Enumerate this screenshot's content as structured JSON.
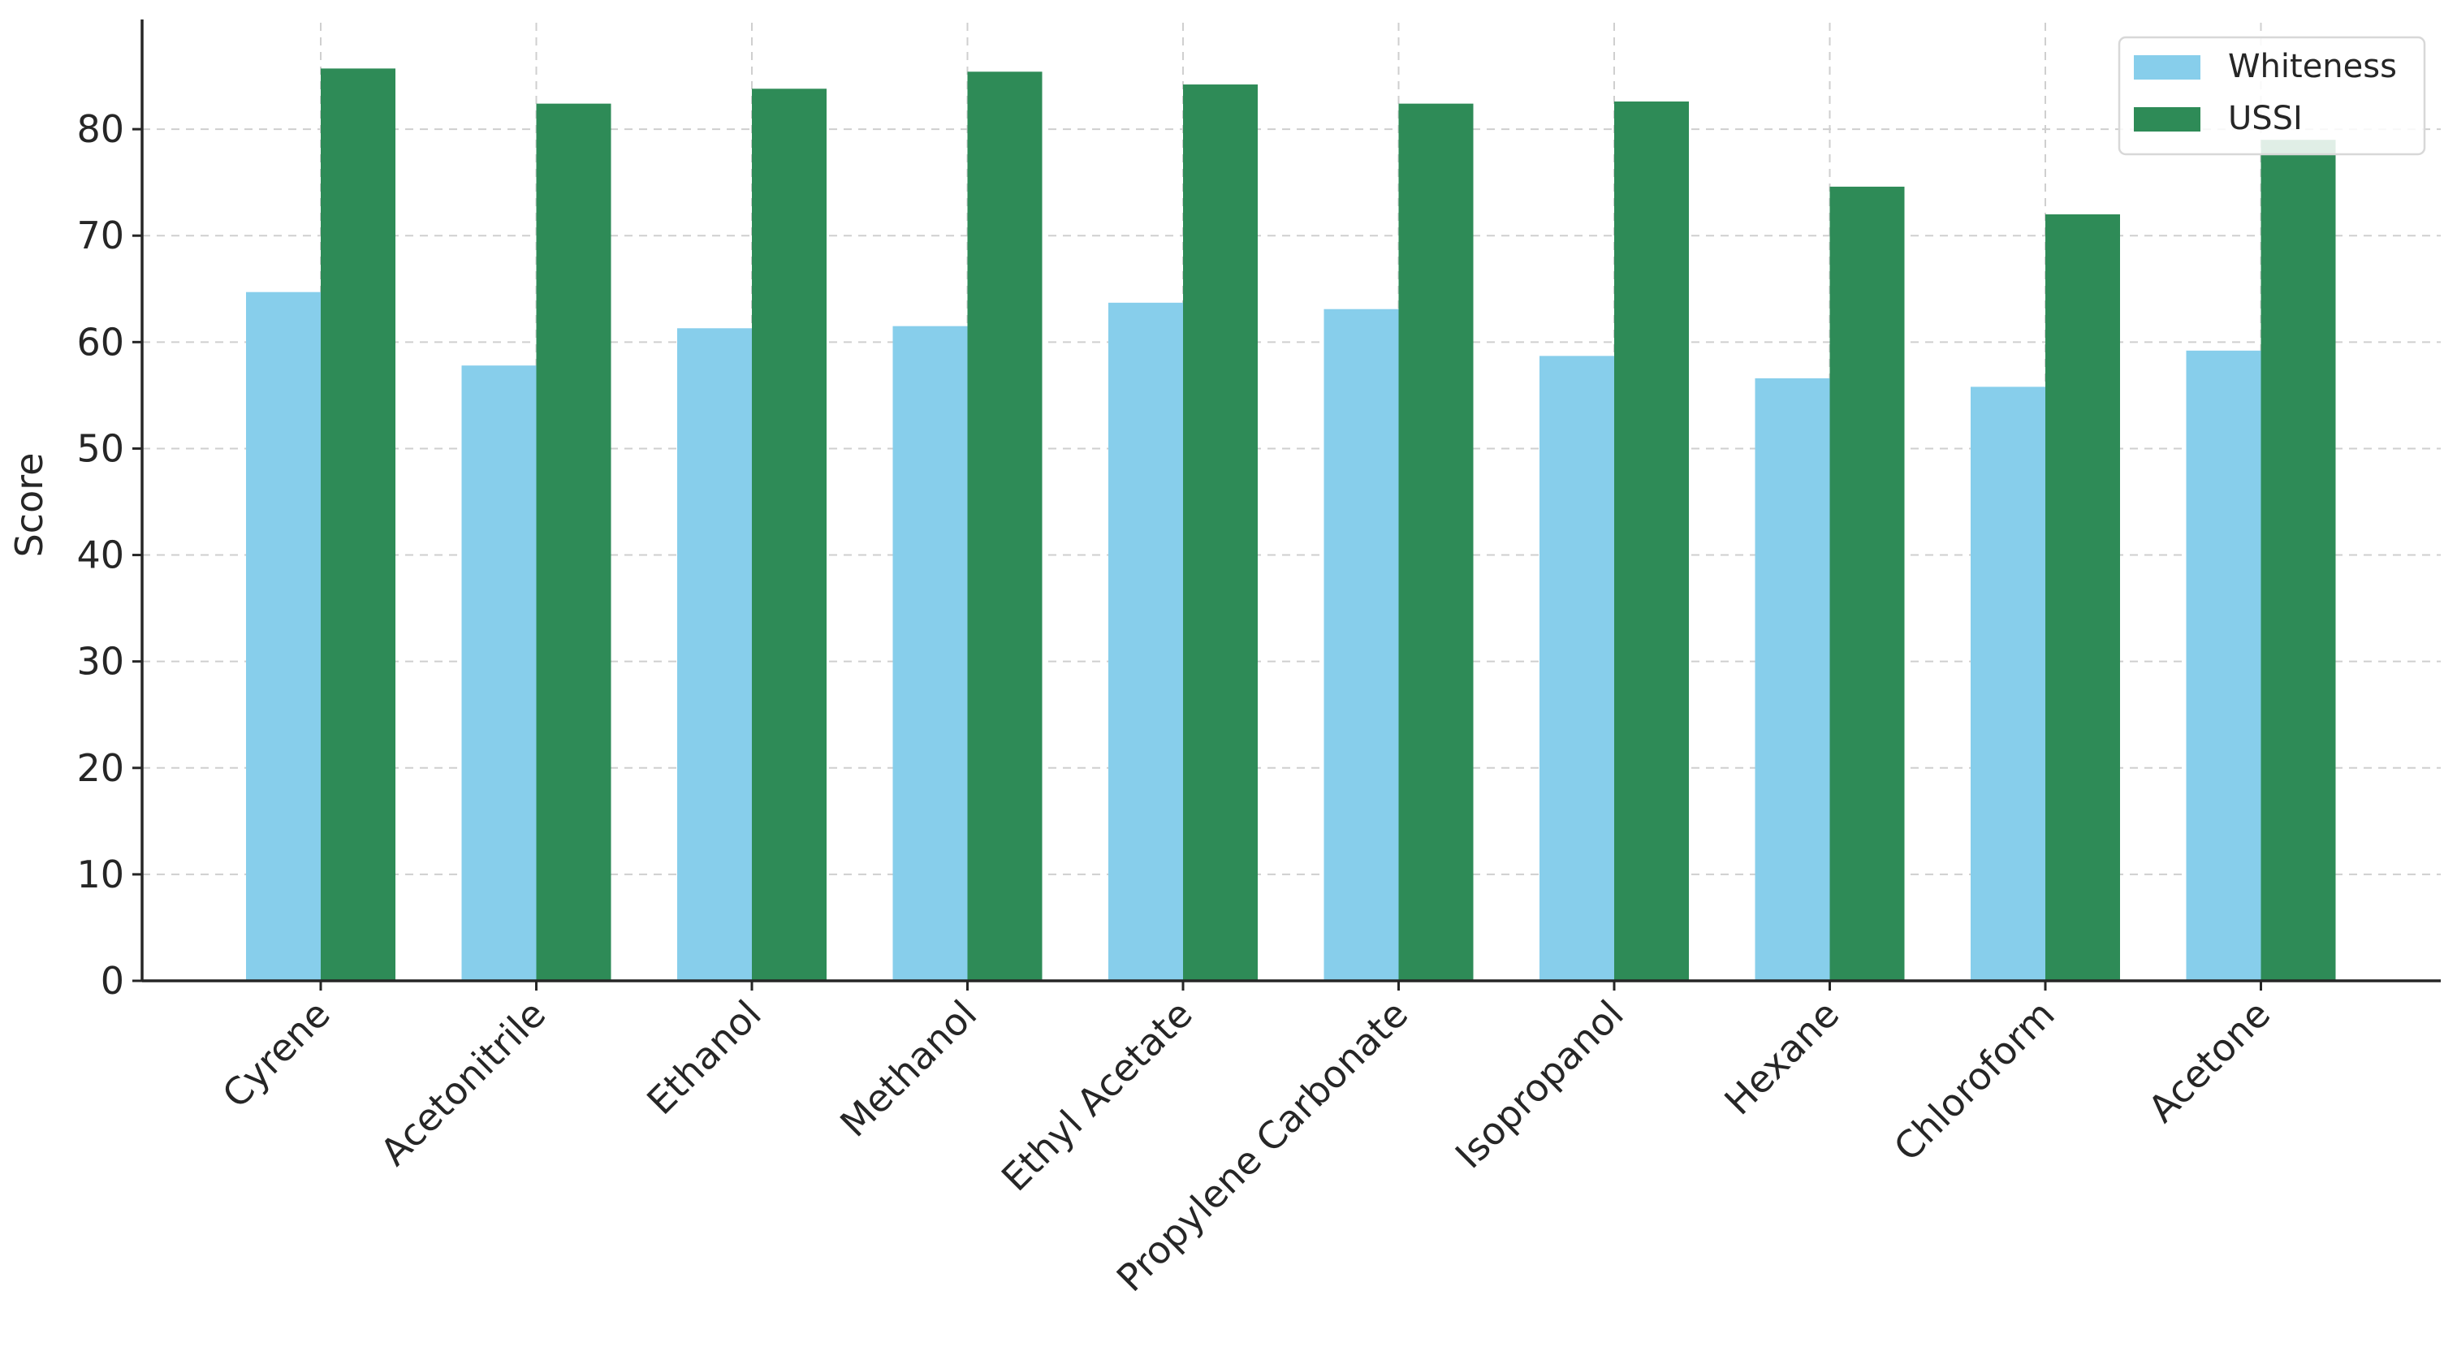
{
  "chart_data": {
    "type": "bar",
    "title": "",
    "xlabel": "",
    "ylabel": "Score",
    "ylim": [
      0,
      90
    ],
    "yticks": [
      0,
      10,
      20,
      30,
      40,
      50,
      60,
      70,
      80
    ],
    "categories": [
      "Cyrene",
      "Acetonitrile",
      "Ethanol",
      "Methanol",
      "Ethyl Acetate",
      "Propylene Carbonate",
      "Isopropanol",
      "Hexane",
      "Chloroform",
      "Acetone"
    ],
    "series": [
      {
        "name": "Whiteness",
        "color": "#87CEEB",
        "values": [
          64.7,
          57.8,
          61.3,
          61.5,
          63.7,
          63.1,
          58.7,
          56.6,
          55.8,
          59.2
        ]
      },
      {
        "name": "USSI",
        "color": "#2E8B57",
        "values": [
          85.7,
          82.4,
          83.8,
          85.4,
          84.2,
          82.4,
          82.6,
          74.6,
          72.0,
          79.0
        ]
      }
    ],
    "grid": true,
    "legend_position": "top-right"
  }
}
